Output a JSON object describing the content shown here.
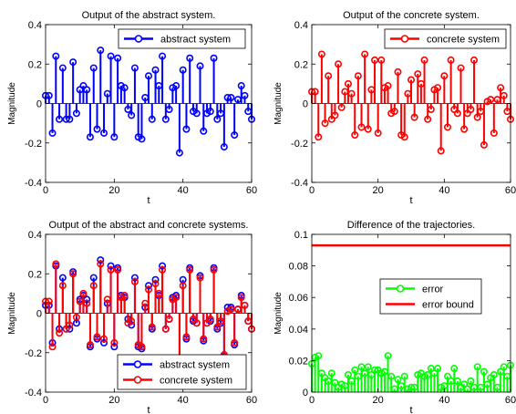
{
  "chart_data": [
    {
      "type": "stem",
      "title": "Output of the abstract system.",
      "xlabel": "t",
      "ylabel": "Magnitude",
      "xlim": [
        0,
        60
      ],
      "ylim": [
        -0.4,
        0.4
      ],
      "xticks": [
        0,
        20,
        40,
        60
      ],
      "yticks": [
        -0.4,
        -0.2,
        0,
        0.2,
        0.4
      ],
      "xtick_labels": [
        "0",
        "20",
        "40",
        "60"
      ],
      "ytick_labels": [
        "-0.4",
        "-0.2",
        "0",
        "0.2",
        "0.4"
      ],
      "legend_position": "top-right",
      "grid": false,
      "series": [
        {
          "name": "abstract system",
          "color": "#0000ff",
          "x": [
            0,
            1,
            2,
            3,
            4,
            5,
            6,
            7,
            8,
            9,
            10,
            11,
            12,
            13,
            14,
            15,
            16,
            17,
            18,
            19,
            20,
            21,
            22,
            23,
            24,
            25,
            26,
            27,
            28,
            29,
            30,
            31,
            32,
            33,
            34,
            35,
            36,
            37,
            38,
            39,
            40,
            41,
            42,
            43,
            44,
            45,
            46,
            47,
            48,
            49,
            50,
            51,
            52,
            53,
            54,
            55,
            56,
            57,
            58,
            59,
            60
          ],
          "y": [
            0.04,
            0.04,
            -0.15,
            0.24,
            -0.08,
            0.18,
            -0.08,
            -0.08,
            0.21,
            -0.05,
            0.07,
            0.09,
            0.07,
            -0.17,
            0.18,
            -0.13,
            0.27,
            -0.15,
            0.05,
            0.24,
            -0.17,
            0.23,
            0.09,
            0.08,
            -0.03,
            -0.06,
            0.18,
            -0.17,
            -0.18,
            0.03,
            0.14,
            -0.08,
            0.17,
            0.09,
            0.24,
            -0.08,
            -0.03,
            0.08,
            0.09,
            -0.25,
            0.17,
            -0.13,
            0.23,
            -0.04,
            -0.05,
            0.19,
            -0.14,
            -0.05,
            -0.04,
            0.23,
            -0.08,
            -0.05,
            -0.22,
            0.03,
            0.03,
            -0.16,
            0.02,
            0.09,
            0.04,
            -0.04,
            -0.08
          ]
        }
      ]
    },
    {
      "type": "stem",
      "title": "Output of the concrete system.",
      "xlabel": "t",
      "ylabel": "Magnitude",
      "xlim": [
        0,
        60
      ],
      "ylim": [
        -0.4,
        0.4
      ],
      "xticks": [
        0,
        20,
        40,
        60
      ],
      "yticks": [
        -0.4,
        -0.2,
        0,
        0.2,
        0.4
      ],
      "xtick_labels": [
        "0",
        "20",
        "40",
        "60"
      ],
      "ytick_labels": [
        "-0.4",
        "-0.2",
        "0",
        "0.2",
        "0.4"
      ],
      "legend_position": "top-right",
      "grid": false,
      "series": [
        {
          "name": "concrete system",
          "color": "#ff0000",
          "x": [
            0,
            1,
            2,
            3,
            4,
            5,
            6,
            7,
            8,
            9,
            10,
            11,
            12,
            13,
            14,
            15,
            16,
            17,
            18,
            19,
            20,
            21,
            22,
            23,
            24,
            25,
            26,
            27,
            28,
            29,
            30,
            31,
            32,
            33,
            34,
            35,
            36,
            37,
            38,
            39,
            40,
            41,
            42,
            43,
            44,
            45,
            46,
            47,
            48,
            49,
            50,
            51,
            52,
            53,
            54,
            55,
            56,
            57,
            58,
            59,
            60
          ],
          "y": [
            0.06,
            0.06,
            -0.17,
            0.25,
            -0.1,
            0.14,
            -0.08,
            -0.06,
            0.2,
            -0.02,
            0.06,
            0.1,
            0.05,
            -0.16,
            0.14,
            -0.12,
            0.25,
            -0.13,
            0.07,
            0.22,
            -0.15,
            0.22,
            0.08,
            0.09,
            -0.05,
            -0.04,
            0.16,
            -0.16,
            -0.17,
            0.05,
            0.12,
            -0.07,
            0.15,
            0.1,
            0.22,
            -0.08,
            -0.03,
            0.07,
            0.08,
            -0.24,
            0.14,
            -0.12,
            0.22,
            -0.03,
            -0.05,
            0.18,
            -0.13,
            -0.05,
            -0.03,
            0.22,
            -0.07,
            -0.04,
            -0.21,
            0.01,
            0.02,
            -0.15,
            0.02,
            0.08,
            0.04,
            -0.04,
            -0.08
          ]
        }
      ]
    },
    {
      "type": "stem",
      "title": "Output of the abstract and concrete systems.",
      "xlabel": "t",
      "ylabel": "Magnitude",
      "xlim": [
        0,
        60
      ],
      "ylim": [
        -0.4,
        0.4
      ],
      "xticks": [
        0,
        20,
        40,
        60
      ],
      "yticks": [
        -0.4,
        -0.2,
        0,
        0.2,
        0.4
      ],
      "xtick_labels": [
        "0",
        "20",
        "40",
        "60"
      ],
      "ytick_labels": [
        "-0.4",
        "-0.2",
        "0",
        "0.2",
        "0.4"
      ],
      "legend_position": "bottom-right",
      "grid": false,
      "series": [
        {
          "name": "abstract system",
          "color": "#0000ff",
          "x": [
            0,
            1,
            2,
            3,
            4,
            5,
            6,
            7,
            8,
            9,
            10,
            11,
            12,
            13,
            14,
            15,
            16,
            17,
            18,
            19,
            20,
            21,
            22,
            23,
            24,
            25,
            26,
            27,
            28,
            29,
            30,
            31,
            32,
            33,
            34,
            35,
            36,
            37,
            38,
            39,
            40,
            41,
            42,
            43,
            44,
            45,
            46,
            47,
            48,
            49,
            50,
            51,
            52,
            53,
            54,
            55,
            56,
            57,
            58,
            59,
            60
          ],
          "y": [
            0.04,
            0.04,
            -0.15,
            0.24,
            -0.08,
            0.18,
            -0.08,
            -0.08,
            0.21,
            -0.05,
            0.07,
            0.09,
            0.07,
            -0.17,
            0.18,
            -0.13,
            0.27,
            -0.15,
            0.05,
            0.24,
            -0.17,
            0.23,
            0.09,
            0.08,
            -0.03,
            -0.06,
            0.18,
            -0.17,
            -0.18,
            0.03,
            0.14,
            -0.08,
            0.17,
            0.09,
            0.24,
            -0.08,
            -0.03,
            0.08,
            0.09,
            -0.25,
            0.17,
            -0.13,
            0.23,
            -0.04,
            -0.05,
            0.19,
            -0.14,
            -0.05,
            -0.04,
            0.23,
            -0.08,
            -0.05,
            -0.22,
            0.03,
            0.03,
            -0.16,
            0.02,
            0.09,
            0.04,
            -0.04,
            -0.08
          ]
        },
        {
          "name": "concrete system",
          "color": "#ff0000",
          "x": [
            0,
            1,
            2,
            3,
            4,
            5,
            6,
            7,
            8,
            9,
            10,
            11,
            12,
            13,
            14,
            15,
            16,
            17,
            18,
            19,
            20,
            21,
            22,
            23,
            24,
            25,
            26,
            27,
            28,
            29,
            30,
            31,
            32,
            33,
            34,
            35,
            36,
            37,
            38,
            39,
            40,
            41,
            42,
            43,
            44,
            45,
            46,
            47,
            48,
            49,
            50,
            51,
            52,
            53,
            54,
            55,
            56,
            57,
            58,
            59,
            60
          ],
          "y": [
            0.06,
            0.06,
            -0.17,
            0.25,
            -0.1,
            0.14,
            -0.08,
            -0.06,
            0.2,
            -0.02,
            0.06,
            0.1,
            0.05,
            -0.16,
            0.14,
            -0.12,
            0.25,
            -0.13,
            0.07,
            0.22,
            -0.15,
            0.22,
            0.08,
            0.09,
            -0.05,
            -0.04,
            0.16,
            -0.16,
            -0.17,
            0.05,
            0.12,
            -0.07,
            0.15,
            0.1,
            0.22,
            -0.08,
            -0.03,
            0.07,
            0.08,
            -0.24,
            0.14,
            -0.12,
            0.22,
            -0.03,
            -0.05,
            0.18,
            -0.13,
            -0.05,
            -0.03,
            0.22,
            -0.07,
            -0.04,
            -0.21,
            0.01,
            0.02,
            -0.15,
            0.02,
            0.08,
            0.04,
            -0.04,
            -0.08
          ]
        }
      ]
    },
    {
      "type": "stem",
      "title": "Difference of the trajectories.",
      "xlabel": "t",
      "ylabel": "Magnitude",
      "xlim": [
        0,
        60
      ],
      "ylim": [
        0,
        0.1
      ],
      "xticks": [
        0,
        20,
        40,
        60
      ],
      "yticks": [
        0,
        0.02,
        0.04,
        0.06,
        0.08,
        0.1
      ],
      "xtick_labels": [
        "0",
        "20",
        "40",
        "60"
      ],
      "ytick_labels": [
        "0",
        "0.02",
        "0.04",
        "0.06",
        "0.08",
        "0.1"
      ],
      "legend_position": "center-right",
      "grid": false,
      "series": [
        {
          "name": "error",
          "color": "#00ff00",
          "x": [
            0,
            1,
            2,
            3,
            4,
            5,
            6,
            7,
            8,
            9,
            10,
            11,
            12,
            13,
            14,
            15,
            16,
            17,
            18,
            19,
            20,
            21,
            22,
            23,
            24,
            25,
            26,
            27,
            28,
            29,
            30,
            31,
            32,
            33,
            34,
            35,
            36,
            37,
            38,
            39,
            40,
            41,
            42,
            43,
            44,
            45,
            46,
            47,
            48,
            49,
            50,
            51,
            52,
            53,
            54,
            55,
            56,
            57,
            58,
            59,
            60
          ],
          "y": [
            0.018,
            0.022,
            0.023,
            0.012,
            0.009,
            0.007,
            0.012,
            0.006,
            0.003,
            0.005,
            0.004,
            0.011,
            0.007,
            0.014,
            0.01,
            0.016,
            0.012,
            0.016,
            0.011,
            0.014,
            0.014,
            0.012,
            0.013,
            0.023,
            0.01,
            0.002,
            0.008,
            0.004,
            0.01,
            0.002,
            0.003,
            0.003,
            0.011,
            0.012,
            0.01,
            0.011,
            0.015,
            0.012,
            0.015,
            0.003,
            0.004,
            0.01,
            0.007,
            0.015,
            0.007,
            0.003,
            0.005,
            0.002,
            0.007,
            0.003,
            0.016,
            0.003,
            0.013,
            0.005,
            0.009,
            0.011,
            0.003,
            0.013,
            0.016,
            0.01,
            0.017
          ]
        },
        {
          "name": "error bound",
          "color": "#ff0000",
          "kind": "line",
          "x": [
            0,
            60
          ],
          "y": [
            0.093,
            0.093
          ]
        }
      ]
    }
  ]
}
